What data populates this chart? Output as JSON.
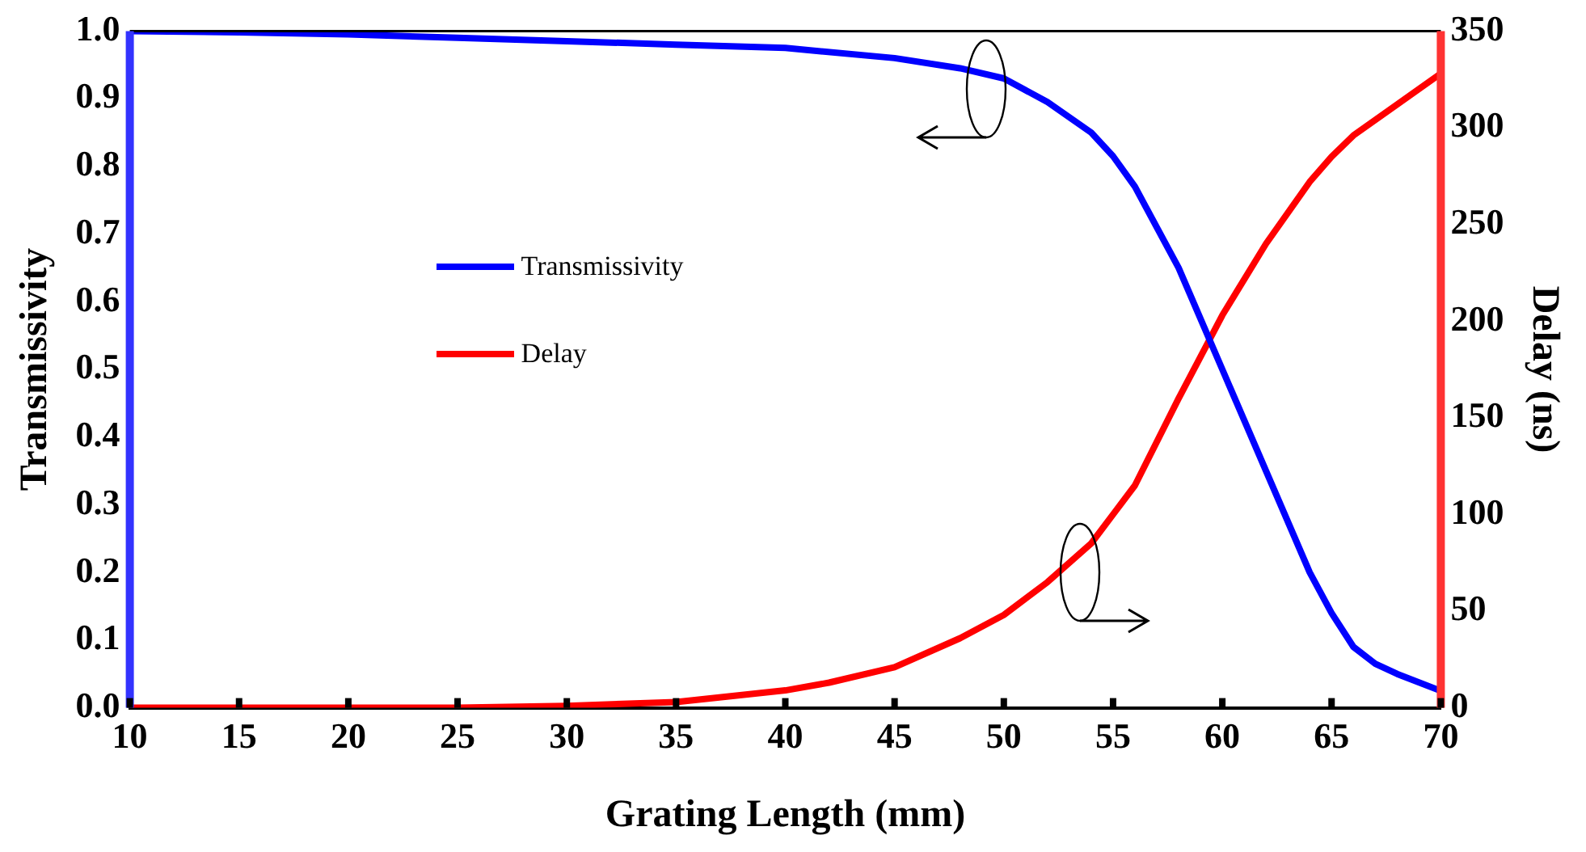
{
  "chart_data": {
    "type": "line",
    "xlabel": "Grating Length (mm)",
    "ylabel": "Transmissivity",
    "y2label": "Delay (ns)",
    "xlim": [
      10,
      70
    ],
    "xticks": [
      10,
      15,
      20,
      25,
      30,
      35,
      40,
      45,
      50,
      55,
      60,
      65,
      70
    ],
    "ylim": [
      0,
      1
    ],
    "yticks": [
      {
        "value": 0,
        "label": "0.0"
      },
      {
        "value": 0.1,
        "label": "0.1"
      },
      {
        "value": 0.2,
        "label": "0.2"
      },
      {
        "value": 0.3,
        "label": "0.3"
      },
      {
        "value": 0.4,
        "label": "0.4"
      },
      {
        "value": 0.5,
        "label": "0.5"
      },
      {
        "value": 0.6,
        "label": "0.6"
      },
      {
        "value": 0.7,
        "label": "0.7"
      },
      {
        "value": 0.8,
        "label": "0.8"
      },
      {
        "value": 0.9,
        "label": "0.9"
      },
      {
        "value": 1,
        "label": "1.0"
      }
    ],
    "y2lim": [
      0,
      350
    ],
    "y2ticks": [
      0,
      50,
      100,
      150,
      200,
      250,
      300,
      350
    ],
    "ref_lines": [
      {
        "axis": "y",
        "value": 1,
        "color": "#000000"
      }
    ],
    "grid": false,
    "legend": "left",
    "marker": "none",
    "line_style": "solid",
    "series": [
      {
        "name": "Transmissivity",
        "color": "#0000ff",
        "x": [
          10,
          15,
          20,
          25,
          30,
          35,
          40,
          45,
          48,
          50,
          52,
          54,
          55,
          56,
          58,
          60,
          62,
          64,
          65,
          66,
          67,
          68,
          70
        ],
        "values": [
          1.0,
          0.998,
          0.995,
          0.99,
          0.985,
          0.98,
          0.975,
          0.96,
          0.945,
          0.93,
          0.895,
          0.85,
          0.815,
          0.77,
          0.65,
          0.5,
          0.35,
          0.2,
          0.14,
          0.09,
          0.065,
          0.05,
          0.025
        ]
      },
      {
        "name": "Delay",
        "color": "#ff0000",
        "axis": "y2",
        "x": [
          10,
          20,
          25,
          30,
          35,
          40,
          42,
          45,
          48,
          50,
          52,
          54,
          55,
          56,
          58,
          60,
          62,
          64,
          65,
          66,
          68,
          70
        ],
        "values": [
          0,
          0,
          0,
          1,
          3,
          9,
          13,
          21,
          36,
          48,
          65,
          85,
          100,
          115,
          160,
          203,
          240,
          272,
          285,
          296,
          312,
          328
        ]
      }
    ]
  }
}
